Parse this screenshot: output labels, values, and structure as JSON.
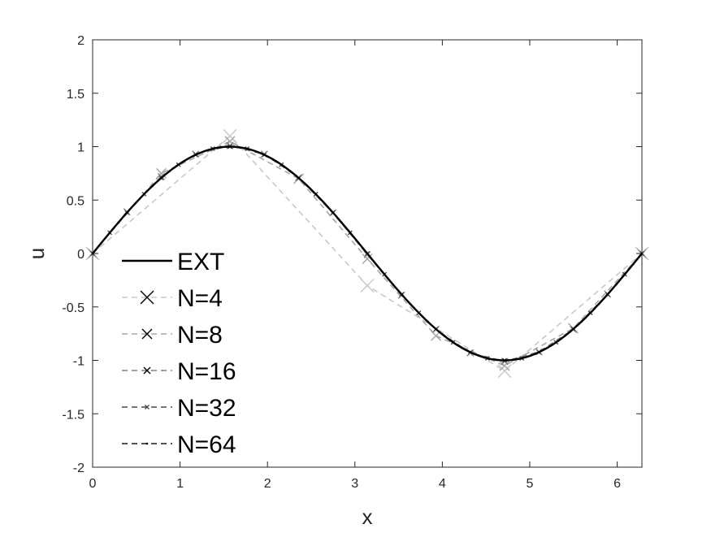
{
  "chart_data": {
    "type": "line",
    "title": "",
    "xlabel": "x",
    "ylabel": "u",
    "xlim": [
      0,
      6.2832
    ],
    "ylim": [
      -2,
      2
    ],
    "grid": false,
    "legend_position": "left",
    "xticks": [
      "0",
      "1",
      "2",
      "3",
      "4",
      "5",
      "6"
    ],
    "yticks": [
      "2",
      "1.5",
      "1",
      "0.5",
      "0",
      "-0.5",
      "-1",
      "-1.5",
      "-2"
    ],
    "colors": {
      "EXT": "#000000",
      "N=4": "#c8c8c8",
      "N=8": "#a6a6a6",
      "N=16": "#7f7f7f",
      "N=32": "#4a4a4a",
      "N=64": "#1a1a1a"
    },
    "series": [
      {
        "name": "EXT",
        "style": "solid",
        "marker": "none",
        "function": "sin",
        "samples": 200
      },
      {
        "name": "N=4",
        "style": "dashed",
        "marker": "x-large",
        "x": [
          0,
          1.5708,
          3.1416,
          4.7124,
          6.2832
        ],
        "y": [
          0,
          1.1,
          -0.3,
          -1.1,
          0
        ]
      },
      {
        "name": "N=8",
        "style": "dashed",
        "marker": "x-medium",
        "x": [
          0,
          0.7854,
          1.5708,
          2.3562,
          3.1416,
          3.927,
          4.7124,
          5.4978,
          6.2832
        ],
        "y": [
          0,
          0.75,
          1.05,
          0.7,
          -0.05,
          -0.77,
          -1.05,
          -0.7,
          0
        ]
      },
      {
        "name": "N=16",
        "style": "dashed",
        "marker": "x-small",
        "x": [
          0,
          0.3927,
          0.7854,
          1.1781,
          1.5708,
          1.9635,
          2.3562,
          2.7489,
          3.1416,
          3.5343,
          3.927,
          4.3197,
          4.7124,
          5.1051,
          5.4978,
          5.8905,
          6.2832
        ],
        "y": [
          0,
          0.39,
          0.72,
          0.93,
          1.01,
          0.93,
          0.71,
          0.38,
          -0.01,
          -0.39,
          -0.71,
          -0.93,
          -1.01,
          -0.92,
          -0.71,
          -0.38,
          0
        ]
      },
      {
        "name": "N=32",
        "style": "dashed",
        "marker": "x-tiny",
        "sampled_from": "sin",
        "count": 33
      },
      {
        "name": "N=64",
        "style": "dashed",
        "marker": "dot",
        "sampled_from": "sin",
        "count": 65
      }
    ]
  }
}
